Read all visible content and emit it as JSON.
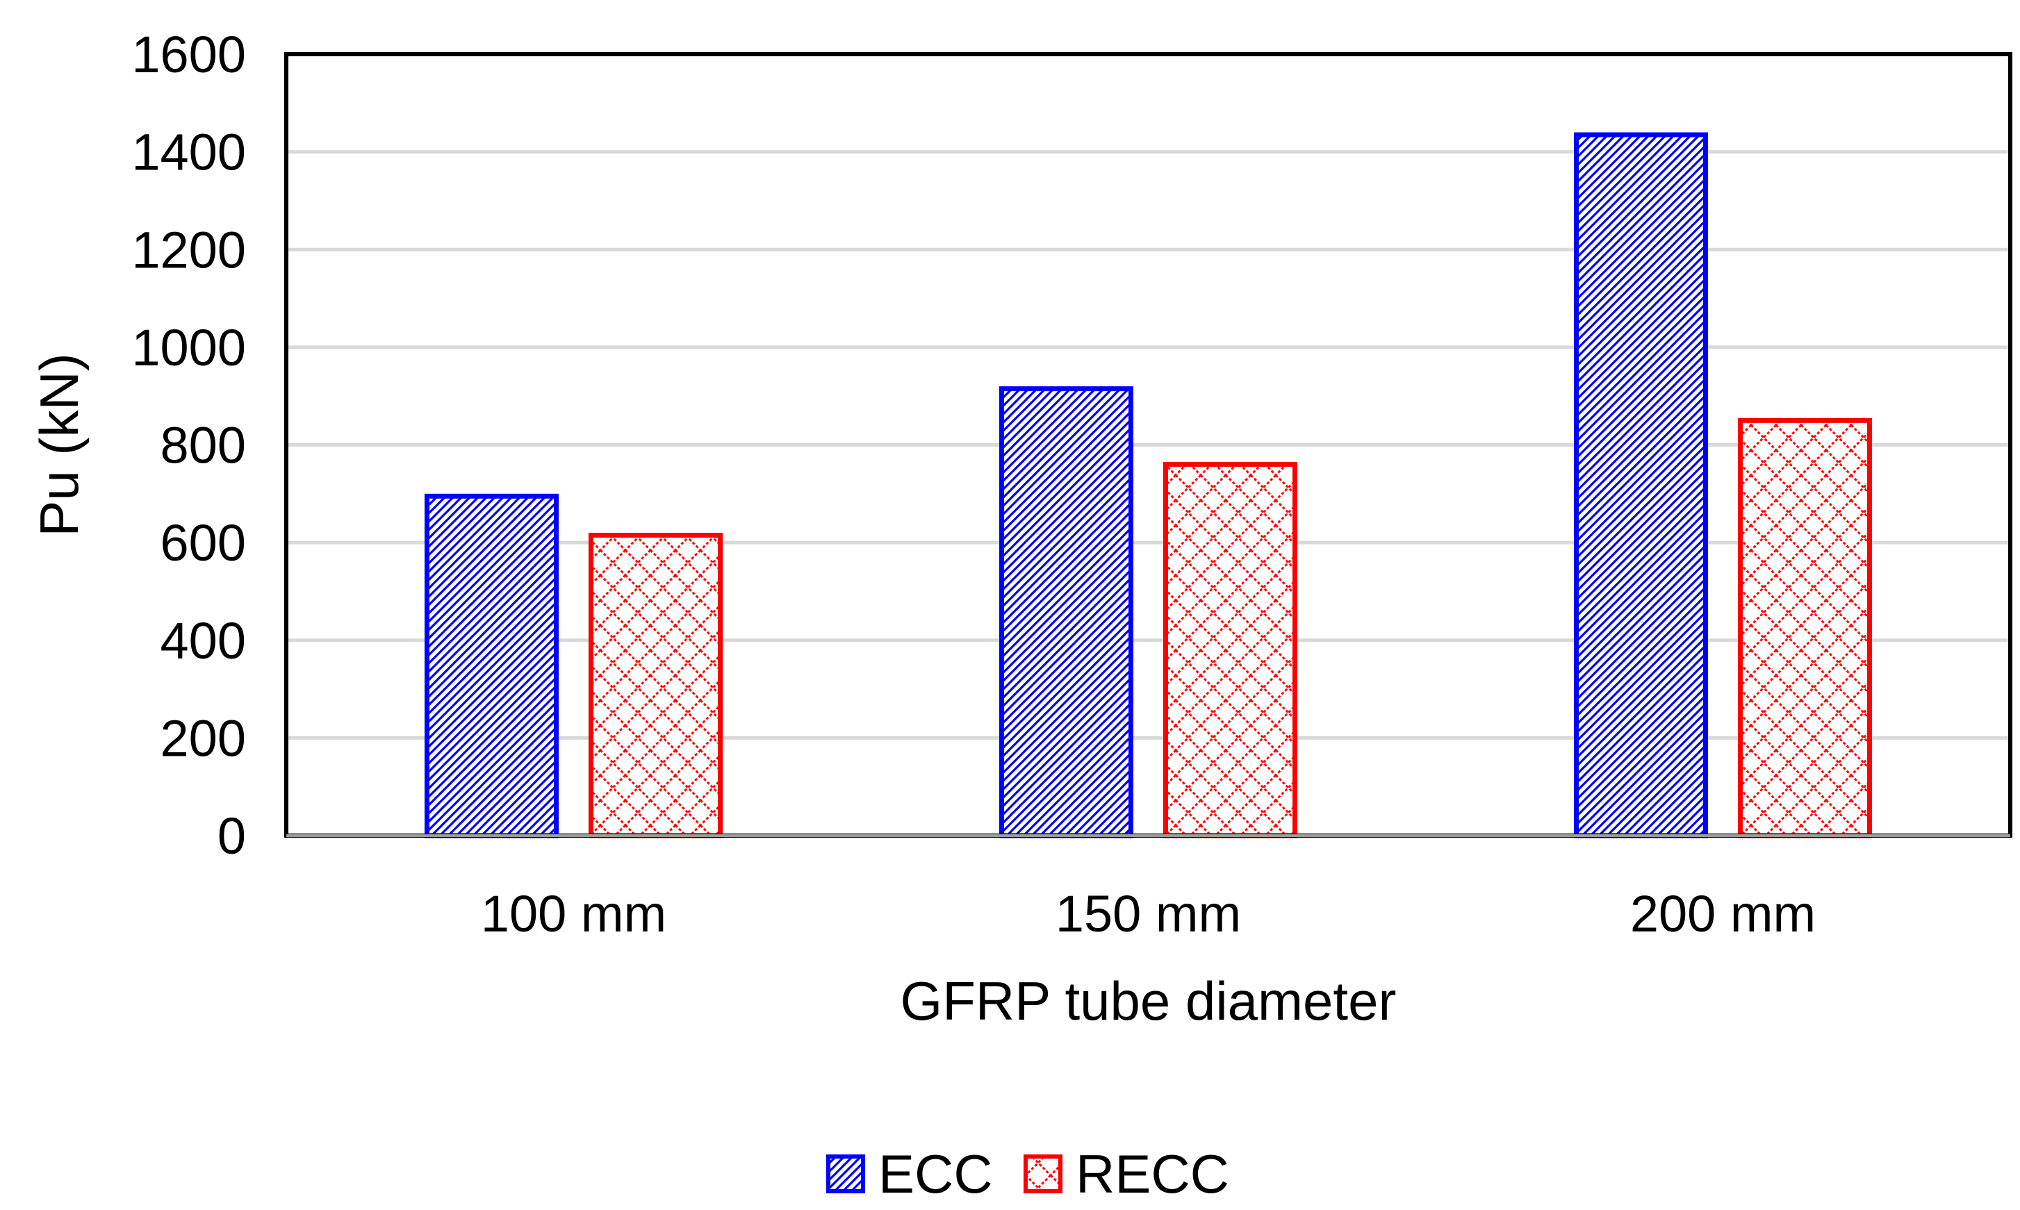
{
  "chart_data": {
    "type": "bar",
    "categories": [
      "100 mm",
      "150 mm",
      "200 mm"
    ],
    "series": [
      {
        "name": "ECC",
        "values": [
          695,
          915,
          1435
        ],
        "color": "#0000ff",
        "pattern": "diagonal-hatch"
      },
      {
        "name": "RECC",
        "values": [
          615,
          760,
          850
        ],
        "color": "#ff0000",
        "pattern": "cross-hatch"
      }
    ],
    "title": "",
    "xlabel": "GFRP tube diameter",
    "ylabel": "Pu (kN)",
    "ylim": [
      0,
      1600
    ],
    "yticks": [
      0,
      200,
      400,
      600,
      800,
      1000,
      1200,
      1400,
      1600
    ],
    "grid": true,
    "legend": "bottom-center"
  }
}
